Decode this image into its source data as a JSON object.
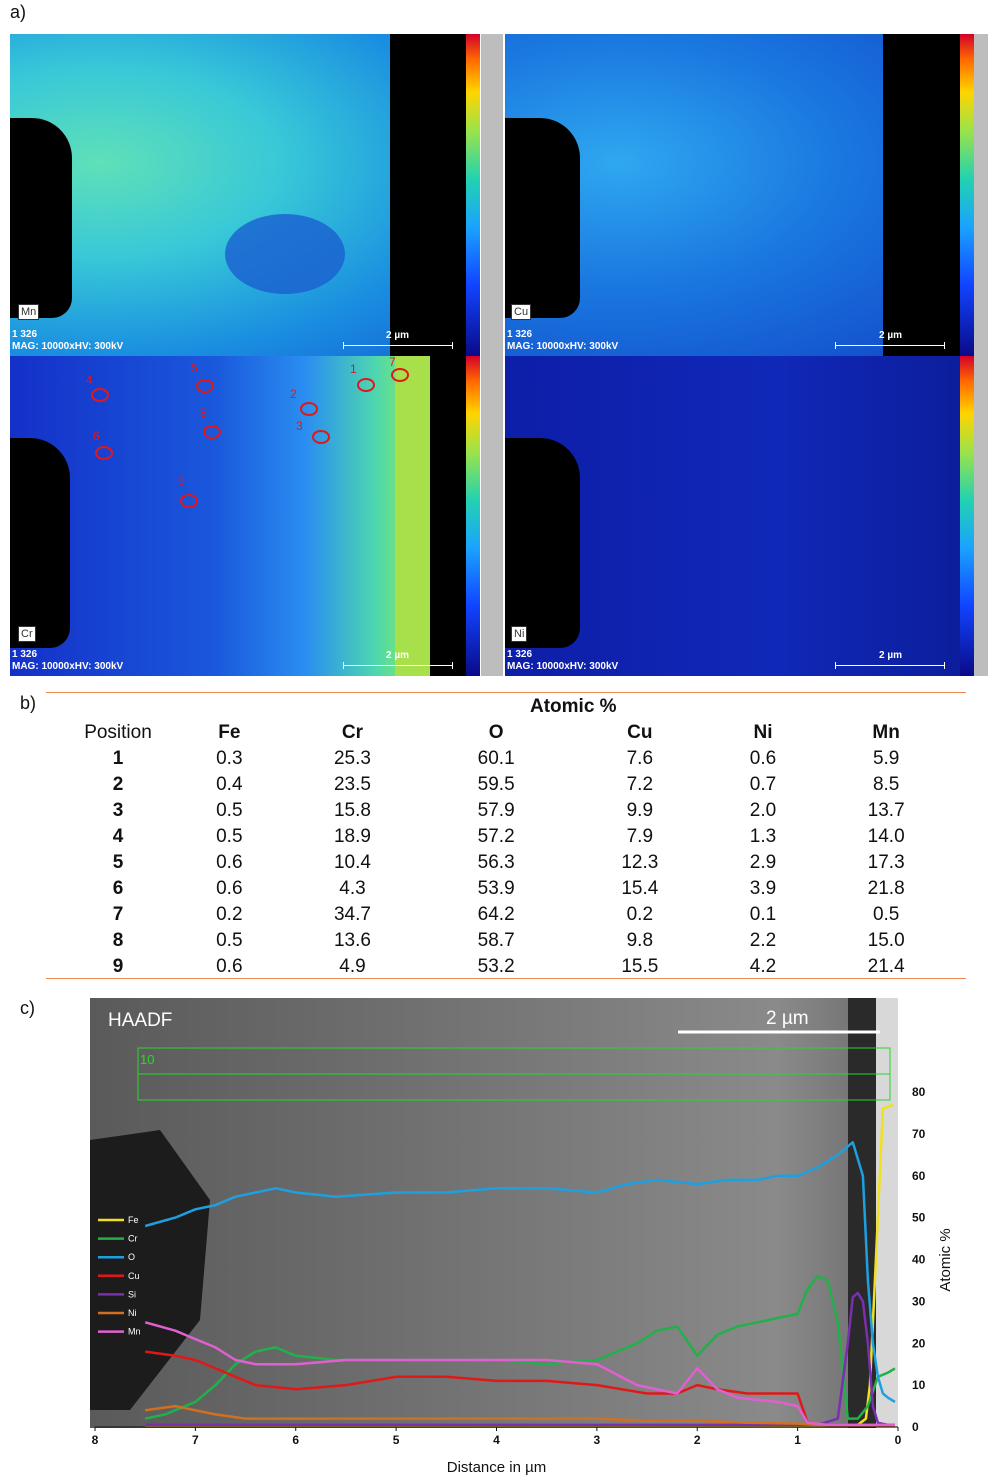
{
  "panel_a": {
    "label": "a)",
    "maps": [
      {
        "element": "Mn",
        "count": "1 326",
        "info": "MAG: 10000xHV: 300kV",
        "scale": "2 µm"
      },
      {
        "element": "Cu",
        "count": "1 326",
        "info": "MAG: 10000xHV: 300kV",
        "scale": "2 µm"
      },
      {
        "element": "Cr",
        "count": "1 326",
        "info": "MAG: 10000xHV: 300kV",
        "scale": "2 µm"
      },
      {
        "element": "Ni",
        "count": "1 326",
        "info": "MAG: 10000xHV: 300kV",
        "scale": "2 µm"
      }
    ],
    "positions": [
      "1",
      "2",
      "3",
      "4",
      "5",
      "6",
      "7",
      "8",
      "9"
    ]
  },
  "panel_b": {
    "label": "b)",
    "group_header": "Atomic %",
    "columns": [
      "Position",
      "Fe",
      "Cr",
      "O",
      "Cu",
      "Ni",
      "Mn"
    ],
    "rows": [
      [
        "1",
        "0.3",
        "25.3",
        "60.1",
        "7.6",
        "0.6",
        "5.9"
      ],
      [
        "2",
        "0.4",
        "23.5",
        "59.5",
        "7.2",
        "0.7",
        "8.5"
      ],
      [
        "3",
        "0.5",
        "15.8",
        "57.9",
        "9.9",
        "2.0",
        "13.7"
      ],
      [
        "4",
        "0.5",
        "18.9",
        "57.2",
        "7.9",
        "1.3",
        "14.0"
      ],
      [
        "5",
        "0.6",
        "10.4",
        "56.3",
        "12.3",
        "2.9",
        "17.3"
      ],
      [
        "6",
        "0.6",
        "4.3",
        "53.9",
        "15.4",
        "3.9",
        "21.8"
      ],
      [
        "7",
        "0.2",
        "34.7",
        "64.2",
        "0.2",
        "0.1",
        "0.5"
      ],
      [
        "8",
        "0.5",
        "13.6",
        "58.7",
        "9.8",
        "2.2",
        "15.0"
      ],
      [
        "9",
        "0.6",
        "4.9",
        "53.2",
        "15.5",
        "4.2",
        "21.4"
      ]
    ]
  },
  "panel_c": {
    "label": "c)",
    "image_label": "HAADF",
    "scale": "2 µm",
    "region": "10"
  },
  "chart_data": {
    "type": "line",
    "xlabel": "Distance in µm",
    "ylabel": "Atomic %",
    "xlim": [
      8,
      0
    ],
    "ylim": [
      0,
      80
    ],
    "x_ticks": [
      8,
      7,
      6,
      5,
      4,
      3,
      2,
      1,
      0
    ],
    "y_ticks": [
      0,
      10,
      20,
      30,
      40,
      50,
      60,
      70,
      80
    ],
    "legend": "left",
    "series": [
      {
        "name": "Fe",
        "color": "#f0e020",
        "x": [
          7.5,
          1.0,
          0.6,
          0.4,
          0.32,
          0.28,
          0.22,
          0.15,
          0.05
        ],
        "y": [
          0.3,
          0.3,
          0.3,
          0.5,
          2,
          10,
          40,
          76,
          77
        ]
      },
      {
        "name": "Cr",
        "color": "#22b04a",
        "x": [
          7.5,
          7.3,
          7.0,
          6.8,
          6.6,
          6.4,
          6.2,
          6.0,
          5.6,
          5.0,
          4.5,
          4.0,
          3.5,
          3.0,
          2.8,
          2.6,
          2.4,
          2.2,
          2.0,
          1.8,
          1.6,
          1.4,
          1.2,
          1.0,
          0.9,
          0.8,
          0.7,
          0.6,
          0.5,
          0.4,
          0.3,
          0.2,
          0.1,
          0.03
        ],
        "y": [
          2,
          3,
          6,
          10,
          15,
          18,
          19,
          17,
          16,
          16,
          16,
          16,
          15,
          16,
          18,
          20,
          23,
          24,
          17,
          22,
          24,
          25,
          26,
          27,
          33,
          36,
          35,
          25,
          2,
          2,
          5,
          12,
          13,
          14
        ]
      },
      {
        "name": "O",
        "color": "#1ea0e0",
        "x": [
          7.5,
          7.2,
          7.0,
          6.8,
          6.6,
          6.4,
          6.2,
          6.0,
          5.6,
          5.0,
          4.5,
          4.0,
          3.5,
          3.0,
          2.7,
          2.4,
          2.0,
          1.7,
          1.4,
          1.2,
          1.0,
          0.8,
          0.6,
          0.45,
          0.35,
          0.3,
          0.25,
          0.2,
          0.15,
          0.1,
          0.03
        ],
        "y": [
          48,
          50,
          52,
          53,
          55,
          56,
          57,
          56,
          55,
          56,
          56,
          57,
          57,
          56,
          58,
          59,
          58,
          59,
          59,
          60,
          60,
          62,
          65,
          68,
          60,
          35,
          20,
          12,
          8,
          7,
          6
        ]
      },
      {
        "name": "Cu",
        "color": "#e01818",
        "x": [
          7.5,
          7.2,
          7.0,
          6.8,
          6.6,
          6.4,
          6.0,
          5.5,
          5.0,
          4.5,
          4.0,
          3.5,
          3.0,
          2.5,
          2.2,
          2.0,
          1.8,
          1.5,
          1.2,
          1.0,
          0.9,
          0.7,
          0.5,
          0.3,
          0.1,
          0.03
        ],
        "y": [
          18,
          17,
          16,
          14,
          12,
          10,
          9,
          10,
          12,
          12,
          11,
          11,
          10,
          8,
          8,
          10,
          9,
          8,
          8,
          8,
          1,
          0.5,
          0.5,
          0.5,
          0.5,
          0.5
        ]
      },
      {
        "name": "Si",
        "color": "#7a2fb0",
        "x": [
          7.5,
          1.0,
          0.8,
          0.6,
          0.5,
          0.45,
          0.4,
          0.35,
          0.3,
          0.25,
          0.2,
          0.1,
          0.03
        ],
        "y": [
          0.5,
          0.5,
          0.5,
          2,
          20,
          31,
          32,
          30,
          20,
          5,
          1,
          0.5,
          0.5
        ]
      },
      {
        "name": "Ni",
        "color": "#d07020",
        "x": [
          7.5,
          7.2,
          7.0,
          6.8,
          6.5,
          6.0,
          5.0,
          4.0,
          3.0,
          2.5,
          2.0,
          1.5,
          1.0,
          0.8,
          0.5,
          0.2,
          0.03
        ],
        "y": [
          4,
          5,
          4,
          3,
          2,
          2,
          2,
          2,
          2,
          1.5,
          1.5,
          1,
          0.8,
          0.5,
          0.3,
          0.2,
          0.2
        ]
      },
      {
        "name": "Mn",
        "color": "#e060d0",
        "x": [
          7.5,
          7.2,
          7.0,
          6.8,
          6.6,
          6.4,
          6.0,
          5.5,
          5.0,
          4.5,
          4.0,
          3.5,
          3.0,
          2.6,
          2.2,
          2.0,
          1.8,
          1.6,
          1.2,
          1.0,
          0.9,
          0.7,
          0.5,
          0.3,
          0.1,
          0.03
        ],
        "y": [
          25,
          23,
          21,
          19,
          16,
          15,
          15,
          16,
          16,
          16,
          16,
          16,
          15,
          10,
          8,
          14,
          9,
          7,
          6,
          5,
          1,
          0.5,
          0.5,
          0.5,
          0.5,
          0.5
        ]
      }
    ]
  },
  "colors": {
    "ring": "#e01818",
    "rule": "#f08a55",
    "roi": "#2ad62a"
  }
}
